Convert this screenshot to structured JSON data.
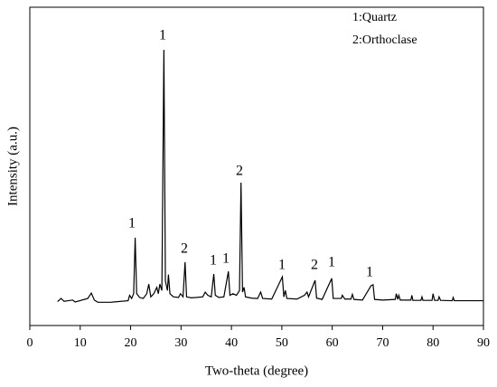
{
  "chart_data": {
    "type": "line",
    "x_label": "Two-theta (degree)",
    "y_label": "Intensity (a.u.)",
    "legend_text": [
      "1:Quartz",
      "2:Orthoclase"
    ],
    "annotations": [
      "1",
      "1",
      "2",
      "1",
      "1",
      "2",
      "1",
      "2",
      "1",
      "1"
    ],
    "xlim": [
      0,
      90
    ],
    "xticks": [
      0,
      10,
      20,
      30,
      40,
      50,
      60,
      70,
      80,
      90
    ],
    "ylim": [
      0,
      100
    ],
    "color": "#000000",
    "x": [
      5.5,
      6.2,
      6.8,
      8.5,
      9,
      11.5,
      12.2,
      12.8,
      13.5,
      16,
      19.5,
      19.8,
      20.2,
      20.6,
      20.9,
      21.2,
      21.8,
      22.5,
      23.2,
      23.6,
      24,
      24.6,
      25.2,
      25.5,
      25.8,
      26.2,
      26.6,
      26.9,
      27.3,
      27.5,
      27.8,
      28.5,
      29.5,
      29.9,
      30.4,
      30.8,
      31.1,
      32,
      33,
      34.3,
      34.8,
      35.3,
      36,
      36.5,
      36.8,
      37.5,
      38.5,
      39.4,
      39.7,
      40.3,
      41,
      41.6,
      41.9,
      42.2,
      42.5,
      42.8,
      44,
      45.2,
      45.8,
      46.2,
      48,
      50.1,
      50.4,
      50.7,
      51,
      53,
      54.5,
      55,
      55.3,
      56.6,
      56.9,
      58,
      59.9,
      60.2,
      61.8,
      62,
      62.5,
      63.7,
      64,
      64.3,
      66,
      67.7,
      68.1,
      68.4,
      70,
      72.5,
      72.7,
      73,
      73.2,
      73.5,
      75.6,
      75.8,
      76,
      77.6,
      77.8,
      78,
      79.8,
      80,
      80.3,
      81,
      81.2,
      81.5,
      83.8,
      84,
      84.2,
      90
    ],
    "values": [
      7.5,
      8.5,
      7.6,
      8.0,
      7.4,
      8.5,
      10.2,
      8.0,
      7.3,
      7.3,
      7.8,
      9.5,
      8.5,
      10,
      27.6,
      10,
      8.8,
      8.5,
      10,
      13,
      9,
      10,
      12,
      10,
      13,
      11,
      86.6,
      14,
      11,
      16,
      10,
      9,
      8.8,
      10,
      9,
      19.9,
      9,
      8.7,
      8.8,
      9,
      10.5,
      9.5,
      9,
      16.2,
      9.5,
      8.8,
      9,
      17,
      9.5,
      10,
      9.5,
      11,
      44.9,
      10.5,
      12,
      9,
      8.6,
      8.5,
      10.5,
      8.5,
      8.3,
      15.3,
      9,
      11,
      8.5,
      8.3,
      9.5,
      10.5,
      9,
      14.2,
      8.6,
      8.2,
      14.8,
      8.5,
      8.5,
      9.5,
      8.3,
      8.3,
      9.8,
      8.2,
      8.0,
      12.5,
      12.8,
      8.2,
      8.0,
      8.2,
      10,
      8.2,
      9.5,
      8.0,
      8.0,
      9.5,
      7.9,
      7.9,
      9,
      7.9,
      7.9,
      10,
      7.9,
      7.9,
      9,
      7.9,
      7.8,
      8.8,
      7.8,
      7.8
    ]
  }
}
